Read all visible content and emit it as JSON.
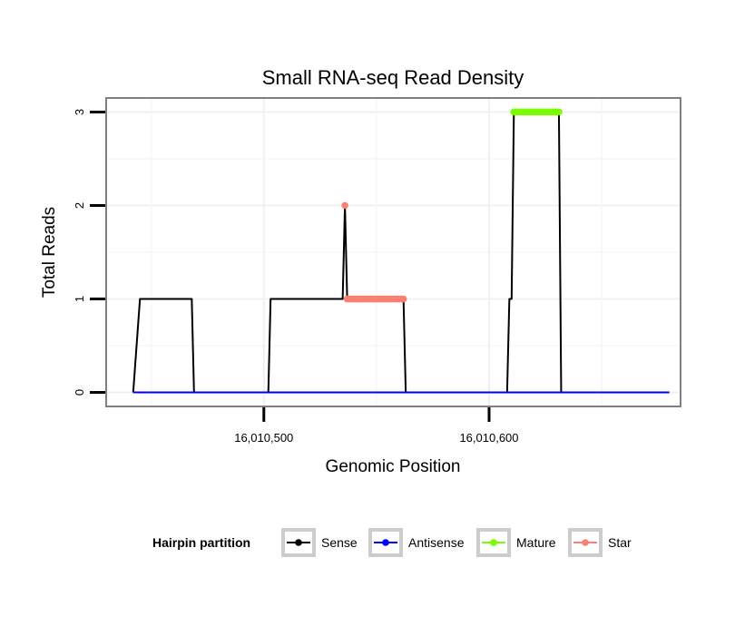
{
  "chart_data": {
    "type": "line",
    "title": "Small RNA-seq Read Density",
    "xlabel": "Genomic Position",
    "ylabel": "Total Reads",
    "xlim": [
      16010430,
      16010685
    ],
    "ylim": [
      -0.15,
      3.15
    ],
    "x_ticks": [
      {
        "value": 16010500,
        "label": "16,010,500"
      },
      {
        "value": 16010600,
        "label": "16,010,600"
      }
    ],
    "y_ticks": [
      {
        "value": 0,
        "label": "0"
      },
      {
        "value": 1,
        "label": "1"
      },
      {
        "value": 2,
        "label": "2"
      },
      {
        "value": 3,
        "label": "3"
      }
    ],
    "grid": true,
    "legend": {
      "title": "Hairpin partition",
      "position": "bottom",
      "entries": [
        {
          "name": "Sense",
          "color": "#000000"
        },
        {
          "name": "Antisense",
          "color": "#0000ff"
        },
        {
          "name": "Mature",
          "color": "#7cfc00"
        },
        {
          "name": "Star",
          "color": "#fa8072"
        }
      ]
    },
    "series": [
      {
        "name": "Sense",
        "color": "#000000",
        "style": "line",
        "x": [
          16010442,
          16010445,
          16010468,
          16010469,
          16010502,
          16010503,
          16010535,
          16010536,
          16010537,
          16010538,
          16010562,
          16010563,
          16010608,
          16010609,
          16010610,
          16010611,
          16010631,
          16010632,
          16010680
        ],
        "y": [
          0,
          1,
          1,
          0,
          0,
          1,
          1,
          2,
          1,
          1,
          1,
          0,
          0,
          1,
          1,
          3,
          3,
          0,
          0
        ]
      },
      {
        "name": "Antisense",
        "color": "#0000ff",
        "style": "line",
        "x": [
          16010442,
          16010680
        ],
        "y": [
          0,
          0
        ]
      },
      {
        "name": "Mature",
        "color": "#7cfc00",
        "style": "points",
        "x_range": [
          16010611,
          16010631
        ],
        "y": 3
      },
      {
        "name": "Star",
        "color": "#fa8072",
        "style": "points",
        "x_range": [
          16010537,
          16010562
        ],
        "y": 1,
        "extra_points": [
          {
            "x": 16010536,
            "y": 2
          }
        ]
      }
    ]
  }
}
